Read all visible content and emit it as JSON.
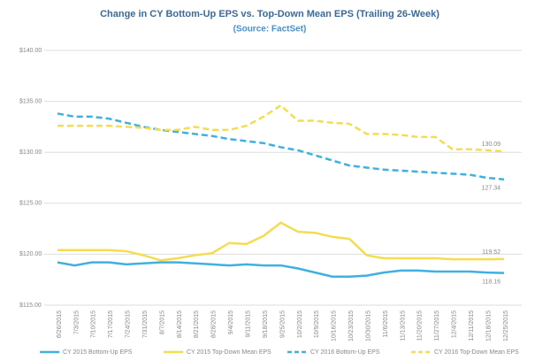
{
  "chart_data": {
    "type": "line",
    "title": "Change in CY Bottom-Up EPS vs. Top-Down Mean EPS (Trailing 26-Week)",
    "subtitle": "(Source: FactSet)",
    "x": [
      "6/26/2015",
      "7/3/2015",
      "7/10/2015",
      "7/17/2015",
      "7/24/2015",
      "7/31/2015",
      "8/7/2015",
      "8/14/2015",
      "8/21/2015",
      "8/28/2015",
      "9/4/2015",
      "9/11/2015",
      "9/18/2015",
      "9/25/2015",
      "10/2/2015",
      "10/9/2015",
      "10/16/2015",
      "10/23/2015",
      "10/30/2015",
      "11/6/2015",
      "11/13/2015",
      "11/20/2015",
      "11/27/2015",
      "12/4/2015",
      "12/11/2015",
      "12/18/2015",
      "12/25/2015"
    ],
    "series": [
      {
        "name": "CY 2015 Bottom-Up EPS",
        "color": "#3fb0e0",
        "dashed": false,
        "values": [
          119.2,
          118.9,
          119.2,
          119.2,
          119.0,
          119.1,
          119.2,
          119.2,
          119.1,
          119.0,
          118.9,
          119.0,
          118.9,
          118.9,
          118.6,
          118.2,
          117.8,
          117.8,
          117.9,
          118.2,
          118.4,
          118.4,
          118.3,
          118.3,
          118.3,
          118.2,
          118.16
        ]
      },
      {
        "name": "CY 2015 Top-Down Mean EPS",
        "color": "#f5dc50",
        "dashed": false,
        "values": [
          120.4,
          120.4,
          120.4,
          120.4,
          120.3,
          119.9,
          119.4,
          119.6,
          119.9,
          120.1,
          121.1,
          121.0,
          121.8,
          123.1,
          122.2,
          122.1,
          121.7,
          121.5,
          119.9,
          119.6,
          119.6,
          119.6,
          119.6,
          119.5,
          119.5,
          119.5,
          119.52
        ]
      },
      {
        "name": "CY 2016 Bottom-Up EPS",
        "color": "#3fb0e0",
        "dashed": true,
        "values": [
          133.8,
          133.5,
          133.5,
          133.3,
          132.9,
          132.5,
          132.2,
          132.0,
          131.8,
          131.6,
          131.3,
          131.1,
          130.9,
          130.5,
          130.2,
          129.7,
          129.2,
          128.7,
          128.5,
          128.3,
          128.2,
          128.1,
          128.0,
          127.9,
          127.8,
          127.5,
          127.34
        ]
      },
      {
        "name": "CY 2016 Top-Down Mean EPS",
        "color": "#f5dc50",
        "dashed": true,
        "values": [
          132.6,
          132.6,
          132.6,
          132.6,
          132.5,
          132.4,
          132.2,
          132.2,
          132.5,
          132.2,
          132.2,
          132.6,
          133.5,
          134.6,
          133.1,
          133.1,
          132.9,
          132.8,
          131.8,
          131.8,
          131.7,
          131.5,
          131.5,
          130.3,
          130.3,
          130.2,
          130.09
        ]
      }
    ],
    "ylim": [
      115,
      140
    ],
    "yticks": [
      {
        "value": 115,
        "label": "$115.00"
      },
      {
        "value": 120,
        "label": "$120.00"
      },
      {
        "value": 125,
        "label": "$125.00"
      },
      {
        "value": 130,
        "label": "$130.00"
      },
      {
        "value": 135,
        "label": "$135.00"
      },
      {
        "value": 140,
        "label": "$140.00"
      }
    ],
    "grid": true,
    "legend": "bottom"
  }
}
